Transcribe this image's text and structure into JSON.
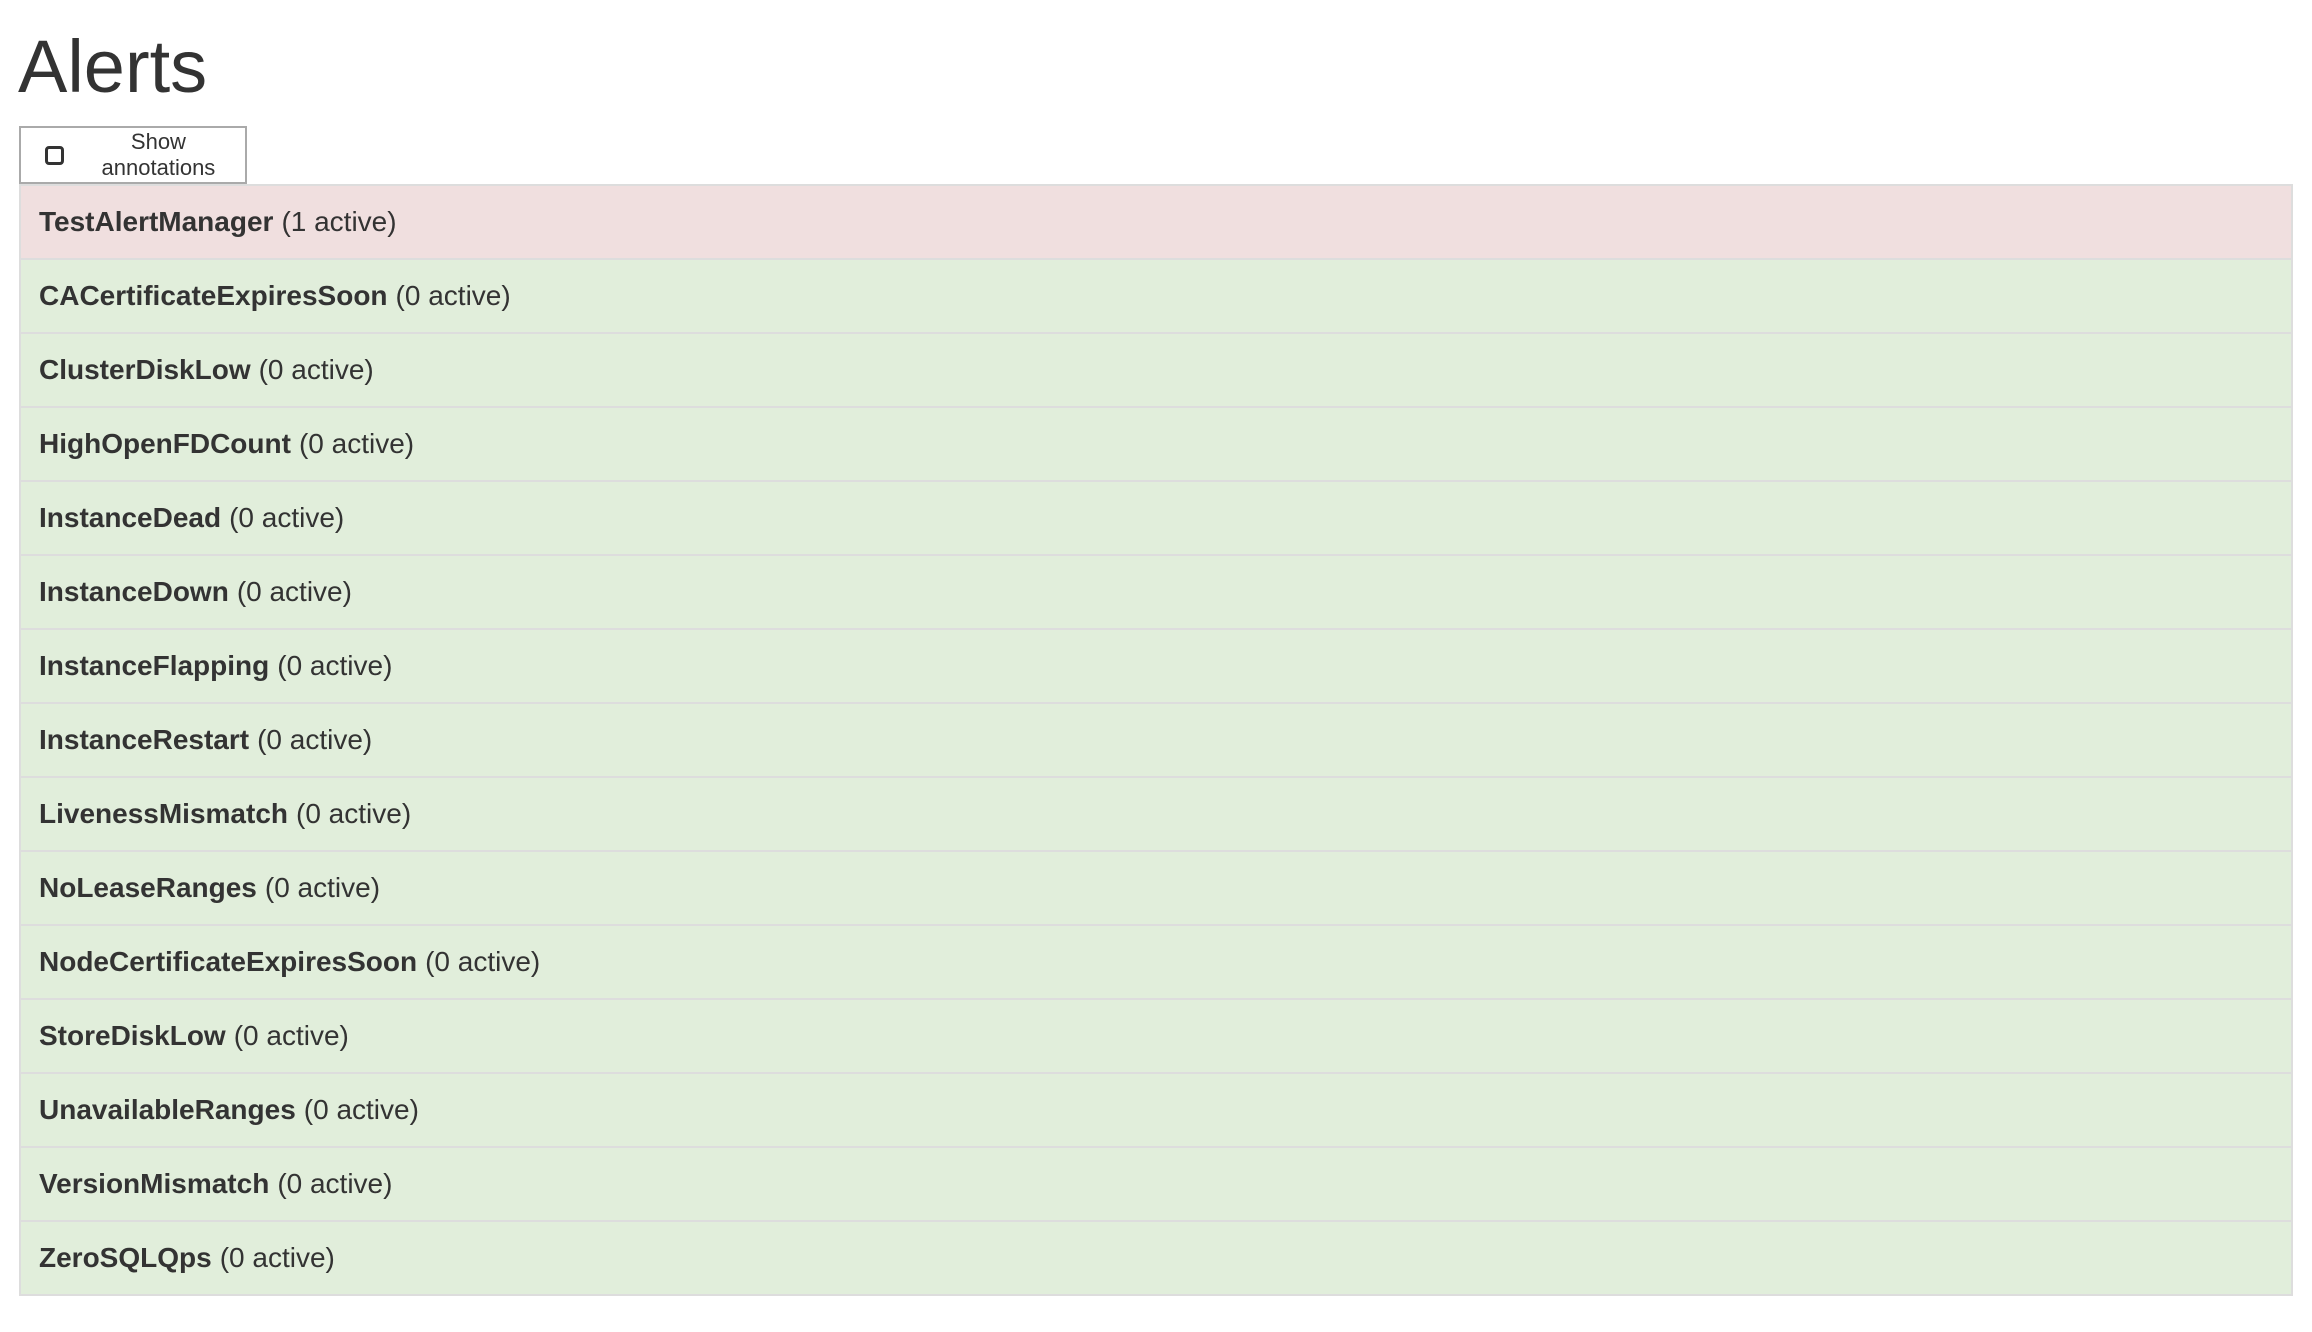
{
  "page": {
    "title": "Alerts"
  },
  "toolbar": {
    "show_annotations_label": "Show annotations",
    "show_annotations_checked": false
  },
  "colors": {
    "firing": "#f0dfdf",
    "inactive": "#e1eedb",
    "border": "#dddddd"
  },
  "alerts": [
    {
      "name": "TestAlertManager",
      "count": "(1 active)",
      "state": "firing"
    },
    {
      "name": "CACertificateExpiresSoon",
      "count": "(0 active)",
      "state": "inactive"
    },
    {
      "name": "ClusterDiskLow",
      "count": "(0 active)",
      "state": "inactive"
    },
    {
      "name": "HighOpenFDCount",
      "count": "(0 active)",
      "state": "inactive"
    },
    {
      "name": "InstanceDead",
      "count": "(0 active)",
      "state": "inactive"
    },
    {
      "name": "InstanceDown",
      "count": "(0 active)",
      "state": "inactive"
    },
    {
      "name": "InstanceFlapping",
      "count": "(0 active)",
      "state": "inactive"
    },
    {
      "name": "InstanceRestart",
      "count": "(0 active)",
      "state": "inactive"
    },
    {
      "name": "LivenessMismatch",
      "count": "(0 active)",
      "state": "inactive"
    },
    {
      "name": "NoLeaseRanges",
      "count": "(0 active)",
      "state": "inactive"
    },
    {
      "name": "NodeCertificateExpiresSoon",
      "count": "(0 active)",
      "state": "inactive"
    },
    {
      "name": "StoreDiskLow",
      "count": "(0 active)",
      "state": "inactive"
    },
    {
      "name": "UnavailableRanges",
      "count": "(0 active)",
      "state": "inactive"
    },
    {
      "name": "VersionMismatch",
      "count": "(0 active)",
      "state": "inactive"
    },
    {
      "name": "ZeroSQLQps",
      "count": "(0 active)",
      "state": "inactive"
    }
  ]
}
